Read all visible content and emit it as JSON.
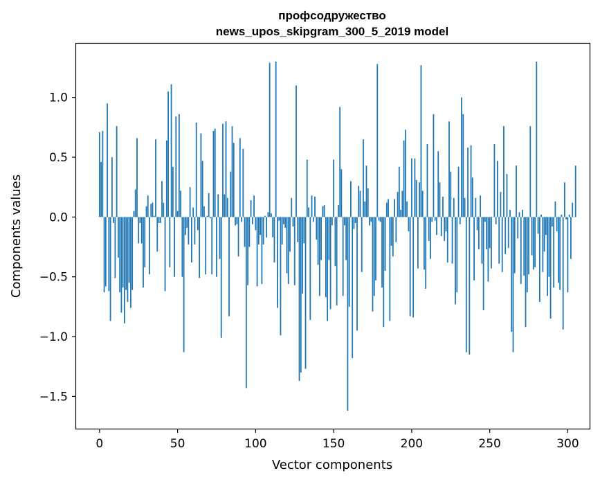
{
  "chart_data": {
    "type": "bar",
    "title_line1": "профсодружество",
    "title_line2": "news_upos_skipgram_300_5_2019 model",
    "xlabel": "Vector components",
    "ylabel": "Components values",
    "xlim": [
      -15,
      314
    ],
    "ylim": [
      -1.77,
      1.45
    ],
    "x_ticks": [
      0,
      50,
      100,
      150,
      200,
      250,
      300
    ],
    "x_tick_labels": [
      "0",
      "50",
      "100",
      "150",
      "200",
      "250",
      "300"
    ],
    "y_ticks": [
      1.0,
      0.5,
      0.0,
      -0.5,
      -1.0,
      -1.5
    ],
    "y_tick_labels": [
      "1.0",
      "0.5",
      "0.0",
      "−0.5",
      "−1.0",
      "−1.5"
    ],
    "bar_color": "#1f77b4",
    "values": [
      0.71,
      0.46,
      0.72,
      -0.63,
      -0.58,
      0.95,
      -0.62,
      -0.87,
      0.5,
      -0.05,
      -0.51,
      0.76,
      -0.34,
      -0.63,
      -0.8,
      -0.59,
      -0.89,
      -0.61,
      -0.71,
      -0.55,
      -0.76,
      -0.61,
      0.05,
      0.23,
      0.66,
      -0.22,
      -0.05,
      -0.22,
      -0.59,
      -0.42,
      0.09,
      0.18,
      -0.48,
      0.11,
      0.12,
      0.01,
      0.65,
      -0.29,
      -0.05,
      -0.05,
      0.3,
      0.12,
      -0.62,
      0.64,
      1.05,
      -0.42,
      1.11,
      0.42,
      -0.5,
      0.84,
      0.05,
      0.86,
      0.22,
      -0.5,
      -1.13,
      -0.15,
      -0.09,
      -0.23,
      0.25,
      -0.38,
      0.08,
      -0.23,
      0.79,
      -0.11,
      -0.51,
      0.7,
      0.47,
      0.09,
      -0.48,
      0.01,
      0.2,
      -0.01,
      -0.48,
      0.72,
      0.74,
      -0.5,
      0.19,
      -0.35,
      -1.01,
      0.78,
      0.19,
      0.8,
      0.16,
      -0.83,
      0.38,
      0.76,
      0.62,
      -0.07,
      -0.06,
      -0.33,
      0.66,
      -0.04,
      0.57,
      -0.25,
      -1.43,
      -0.57,
      -0.25,
      0.14,
      -0.06,
      0.18,
      -0.11,
      -0.58,
      -0.23,
      -0.15,
      -0.56,
      -0.23,
      0.01,
      -0.17,
      0.04,
      1.29,
      0.03,
      -0.17,
      -0.38,
      1.3,
      -0.76,
      -0.03,
      -0.99,
      -0.23,
      -0.06,
      -0.09,
      -0.47,
      -0.56,
      -0.29,
      0.16,
      -0.08,
      -0.57,
      1.1,
      -0.21,
      -1.37,
      -1.3,
      -0.64,
      -0.22,
      -1.27,
      0.48,
      0.08,
      -0.86,
      0.18,
      -0.04,
      0.17,
      -0.19,
      -0.4,
      -0.66,
      -0.36,
      0.09,
      0.1,
      -0.67,
      -0.87,
      -0.36,
      -0.77,
      -0.07,
      0.48,
      -0.41,
      -0.74,
      0.1,
      0.92,
      0.4,
      -0.66,
      -0.07,
      -0.36,
      -1.62,
      -0.75,
      0.3,
      -1.18,
      -0.1,
      -0.05,
      -0.95,
      0.26,
      0.22,
      -0.46,
      0.65,
      0.13,
      0.43,
      0.24,
      -0.07,
      -0.04,
      -0.79,
      -0.66,
      -0.53,
      1.28,
      -0.03,
      -0.04,
      -0.59,
      -0.92,
      -0.45,
      0.12,
      0.15,
      -0.87,
      -0.24,
      -0.33,
      0.15,
      -0.21,
      0.21,
      0.42,
      0.06,
      0.22,
      0.64,
      0.73,
      0.13,
      -0.12,
      -0.83,
      0.49,
      -0.84,
      0.49,
      0.31,
      -0.43,
      0.29,
      1.27,
      0.22,
      -0.44,
      -0.6,
      0.61,
      -0.2,
      -0.35,
      -0.04,
      0.86,
      -0.03,
      -0.15,
      0.55,
      0.29,
      -0.16,
      0.17,
      -0.2,
      -0.12,
      -0.38,
      0.8,
      0.38,
      -0.39,
      0.16,
      -0.73,
      -0.63,
      0.42,
      -0.06,
      1.0,
      0.86,
      0.16,
      -1.13,
      0.58,
      -1.15,
      0.6,
      0.33,
      -0.53,
      0.16,
      -0.11,
      -0.27,
      0.18,
      -0.39,
      -0.78,
      -0.04,
      -0.27,
      -0.54,
      -0.26,
      -0.43,
      0.0,
      0.61,
      -0.06,
      0.47,
      -0.39,
      0.21,
      -0.46,
      0.76,
      -0.31,
      0.36,
      -0.26,
      0.06,
      -0.96,
      -1.13,
      -0.47,
      0.43,
      -0.18,
      0.04,
      -0.56,
      0.06,
      -0.49,
      -0.92,
      -0.63,
      -0.48,
      0.76,
      -0.32,
      -0.44,
      -0.42,
      1.3,
      -0.14,
      -0.71,
      0.02,
      -0.46,
      -0.29,
      -0.15,
      -0.66,
      -0.5,
      -0.85,
      -0.08,
      -0.59,
      0.13,
      -0.12,
      -0.55,
      -0.61,
      0.02,
      -0.94,
      0.29,
      -0.02,
      -0.63,
      0.02,
      -0.35,
      0.12,
      0.0,
      0.43
    ]
  }
}
